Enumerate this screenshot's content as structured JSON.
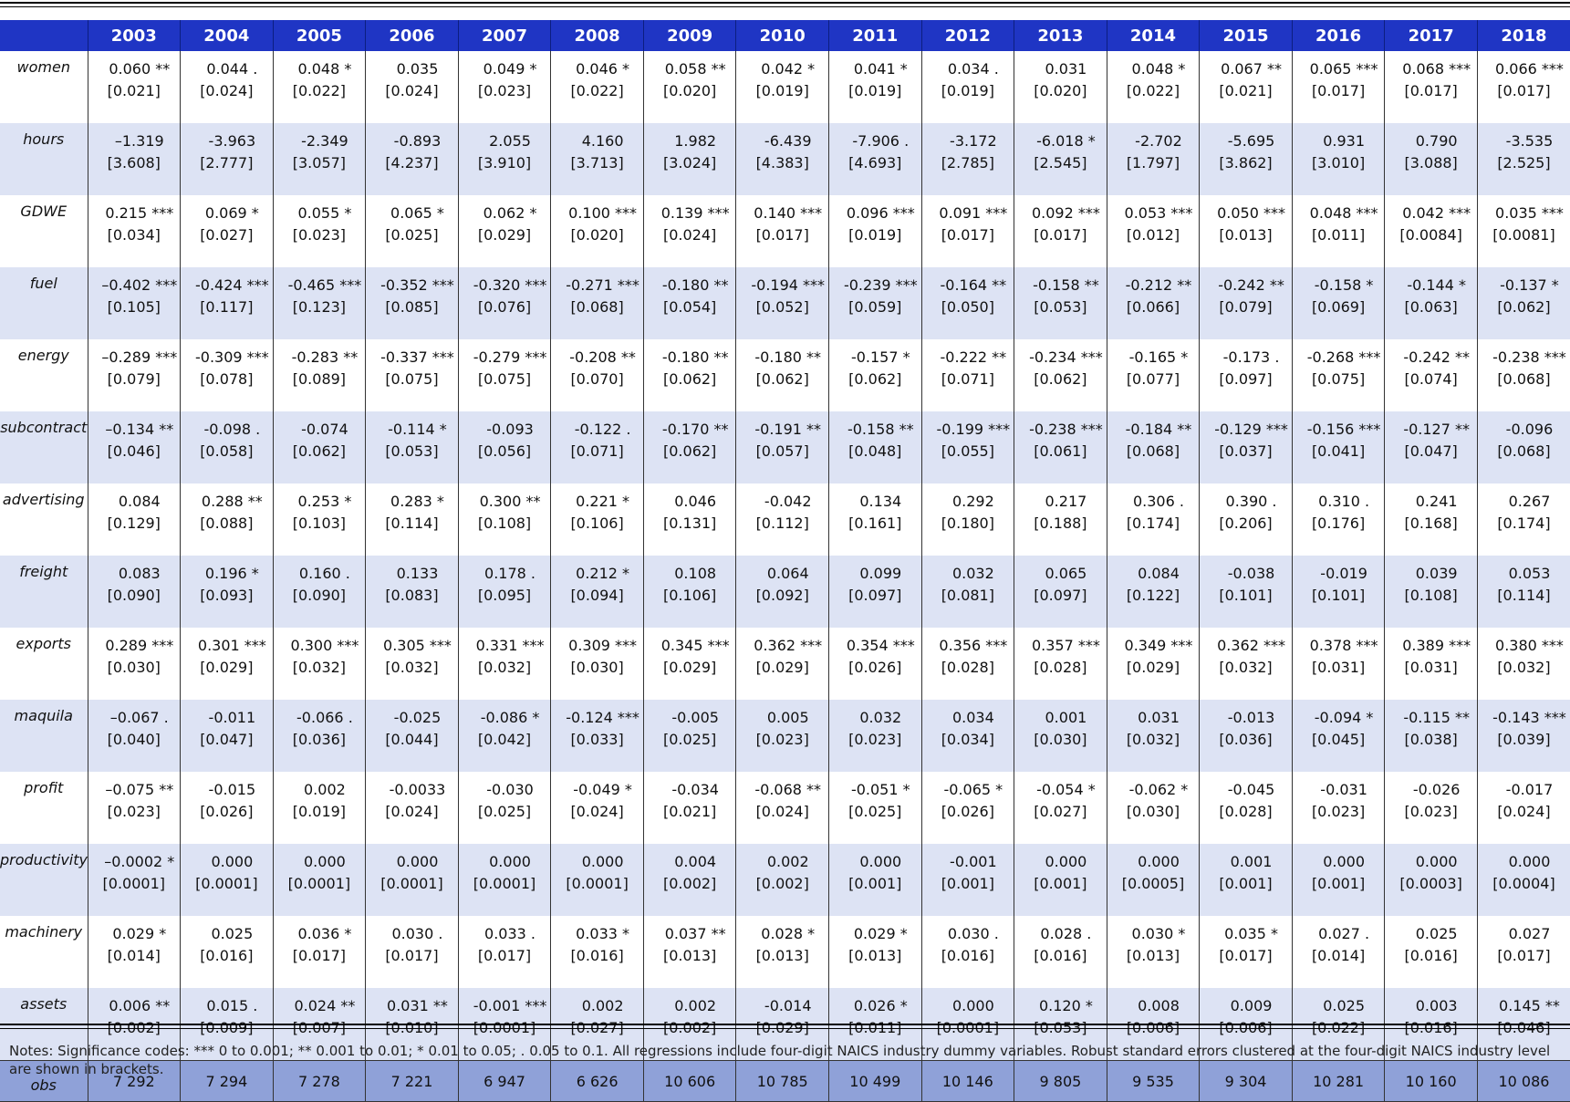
{
  "years": [
    "2003",
    "2004",
    "2005",
    "2006",
    "2007",
    "2008",
    "2009",
    "2010",
    "2011",
    "2012",
    "2013",
    "2014",
    "2015",
    "2016",
    "2017",
    "2018"
  ],
  "rows": [
    {
      "var": "women",
      "cells": [
        {
          "c": "0.060 **",
          "se": "[0.021]"
        },
        {
          "c": "0.044 .",
          "se": "[0.024]"
        },
        {
          "c": "0.048 *",
          "se": "[0.022]"
        },
        {
          "c": "0.035",
          "se": "[0.024]"
        },
        {
          "c": "0.049 *",
          "se": "[0.023]"
        },
        {
          "c": "0.046 *",
          "se": "[0.022]"
        },
        {
          "c": "0.058 **",
          "se": "[0.020]"
        },
        {
          "c": "0.042 *",
          "se": "[0.019]"
        },
        {
          "c": "0.041 *",
          "se": "[0.019]"
        },
        {
          "c": "0.034 .",
          "se": "[0.019]"
        },
        {
          "c": "0.031",
          "se": "[0.020]"
        },
        {
          "c": "0.048 *",
          "se": "[0.022]"
        },
        {
          "c": "0.067 **",
          "se": "[0.021]"
        },
        {
          "c": "0.065 ***",
          "se": "[0.017]"
        },
        {
          "c": "0.068 ***",
          "se": "[0.017]"
        },
        {
          "c": "0.066 ***",
          "se": "[0.017]"
        }
      ]
    },
    {
      "var": "hours",
      "cells": [
        {
          "c": "–1.319",
          "se": "[3.608]"
        },
        {
          "c": "-3.963",
          "se": "[2.777]"
        },
        {
          "c": "-2.349",
          "se": "[3.057]"
        },
        {
          "c": "-0.893",
          "se": "[4.237]"
        },
        {
          "c": "2.055",
          "se": "[3.910]"
        },
        {
          "c": "4.160",
          "se": "[3.713]"
        },
        {
          "c": "1.982",
          "se": "[3.024]"
        },
        {
          "c": "-6.439",
          "se": "[4.383]"
        },
        {
          "c": "-7.906 .",
          "se": "[4.693]"
        },
        {
          "c": "-3.172",
          "se": "[2.785]"
        },
        {
          "c": "-6.018 *",
          "se": "[2.545]"
        },
        {
          "c": "-2.702",
          "se": "[1.797]"
        },
        {
          "c": "-5.695",
          "se": "[3.862]"
        },
        {
          "c": "0.931",
          "se": "[3.010]"
        },
        {
          "c": "0.790",
          "se": "[3.088]"
        },
        {
          "c": "-3.535",
          "se": "[2.525]"
        }
      ]
    },
    {
      "var": "GDWE",
      "cells": [
        {
          "c": "0.215 ***",
          "se": "[0.034]"
        },
        {
          "c": "0.069 *",
          "se": "[0.027]"
        },
        {
          "c": "0.055 *",
          "se": "[0.023]"
        },
        {
          "c": "0.065 *",
          "se": "[0.025]"
        },
        {
          "c": "0.062 *",
          "se": "[0.029]"
        },
        {
          "c": "0.100 ***",
          "se": "[0.020]"
        },
        {
          "c": "0.139 ***",
          "se": "[0.024]"
        },
        {
          "c": "0.140 ***",
          "se": "[0.017]"
        },
        {
          "c": "0.096 ***",
          "se": "[0.019]"
        },
        {
          "c": "0.091 ***",
          "se": "[0.017]"
        },
        {
          "c": "0.092 ***",
          "se": "[0.017]"
        },
        {
          "c": "0.053 ***",
          "se": "[0.012]"
        },
        {
          "c": "0.050 ***",
          "se": "[0.013]"
        },
        {
          "c": "0.048 ***",
          "se": "[0.011]"
        },
        {
          "c": "0.042 ***",
          "se": "[0.0084]"
        },
        {
          "c": "0.035 ***",
          "se": "[0.0081]"
        }
      ]
    },
    {
      "var": "fuel",
      "cells": [
        {
          "c": "–0.402 ***",
          "se": "[0.105]"
        },
        {
          "c": "-0.424 ***",
          "se": "[0.117]"
        },
        {
          "c": "-0.465 ***",
          "se": "[0.123]"
        },
        {
          "c": "-0.352 ***",
          "se": "[0.085]"
        },
        {
          "c": "-0.320 ***",
          "se": "[0.076]"
        },
        {
          "c": "-0.271 ***",
          "se": "[0.068]"
        },
        {
          "c": "-0.180 **",
          "se": "[0.054]"
        },
        {
          "c": "-0.194 ***",
          "se": "[0.052]"
        },
        {
          "c": "-0.239 ***",
          "se": "[0.059]"
        },
        {
          "c": "-0.164 **",
          "se": "[0.050]"
        },
        {
          "c": "-0.158 **",
          "se": "[0.053]"
        },
        {
          "c": "-0.212 **",
          "se": "[0.066]"
        },
        {
          "c": "-0.242 **",
          "se": "[0.079]"
        },
        {
          "c": "-0.158 *",
          "se": "[0.069]"
        },
        {
          "c": "-0.144 *",
          "se": "[0.063]"
        },
        {
          "c": "-0.137 *",
          "se": "[0.062]"
        }
      ]
    },
    {
      "var": "energy",
      "cells": [
        {
          "c": "–0.289 ***",
          "se": "[0.079]"
        },
        {
          "c": "-0.309 ***",
          "se": "[0.078]"
        },
        {
          "c": "-0.283 **",
          "se": "[0.089]"
        },
        {
          "c": "-0.337 ***",
          "se": "[0.075]"
        },
        {
          "c": "-0.279 ***",
          "se": "[0.075]"
        },
        {
          "c": "-0.208 **",
          "se": "[0.070]"
        },
        {
          "c": "-0.180 **",
          "se": "[0.062]"
        },
        {
          "c": "-0.180 **",
          "se": "[0.062]"
        },
        {
          "c": "-0.157 *",
          "se": "[0.062]"
        },
        {
          "c": "-0.222 **",
          "se": "[0.071]"
        },
        {
          "c": "-0.234 ***",
          "se": "[0.062]"
        },
        {
          "c": "-0.165 *",
          "se": "[0.077]"
        },
        {
          "c": "-0.173 .",
          "se": "[0.097]"
        },
        {
          "c": "-0.268 ***",
          "se": "[0.075]"
        },
        {
          "c": "-0.242 **",
          "se": "[0.074]"
        },
        {
          "c": "-0.238 ***",
          "se": "[0.068]"
        }
      ]
    },
    {
      "var": "subcontract",
      "cells": [
        {
          "c": "–0.134 **",
          "se": "[0.046]"
        },
        {
          "c": "-0.098 .",
          "se": "[0.058]"
        },
        {
          "c": "-0.074",
          "se": "[0.062]"
        },
        {
          "c": "-0.114 *",
          "se": "[0.053]"
        },
        {
          "c": "-0.093",
          "se": "[0.056]"
        },
        {
          "c": "-0.122 .",
          "se": "[0.071]"
        },
        {
          "c": "-0.170 **",
          "se": "[0.062]"
        },
        {
          "c": "-0.191 **",
          "se": "[0.057]"
        },
        {
          "c": "-0.158 **",
          "se": "[0.048]"
        },
        {
          "c": "-0.199 ***",
          "se": "[0.055]"
        },
        {
          "c": "-0.238 ***",
          "se": "[0.061]"
        },
        {
          "c": "-0.184 **",
          "se": "[0.068]"
        },
        {
          "c": "-0.129 ***",
          "se": "[0.037]"
        },
        {
          "c": "-0.156 ***",
          "se": "[0.041]"
        },
        {
          "c": "-0.127 **",
          "se": "[0.047]"
        },
        {
          "c": "-0.096",
          "se": "[0.068]"
        }
      ]
    },
    {
      "var": "advertising",
      "cells": [
        {
          "c": "0.084",
          "se": "[0.129]"
        },
        {
          "c": "0.288 **",
          "se": "[0.088]"
        },
        {
          "c": "0.253 *",
          "se": "[0.103]"
        },
        {
          "c": "0.283 *",
          "se": "[0.114]"
        },
        {
          "c": "0.300 **",
          "se": "[0.108]"
        },
        {
          "c": "0.221 *",
          "se": "[0.106]"
        },
        {
          "c": "0.046",
          "se": "[0.131]"
        },
        {
          "c": "-0.042",
          "se": "[0.112]"
        },
        {
          "c": "0.134",
          "se": "[0.161]"
        },
        {
          "c": "0.292",
          "se": "[0.180]"
        },
        {
          "c": "0.217",
          "se": "[0.188]"
        },
        {
          "c": "0.306 .",
          "se": "[0.174]"
        },
        {
          "c": "0.390 .",
          "se": "[0.206]"
        },
        {
          "c": "0.310 .",
          "se": "[0.176]"
        },
        {
          "c": "0.241",
          "se": "[0.168]"
        },
        {
          "c": "0.267",
          "se": "[0.174]"
        }
      ]
    },
    {
      "var": "freight",
      "cells": [
        {
          "c": "0.083",
          "se": "[0.090]"
        },
        {
          "c": "0.196 *",
          "se": "[0.093]"
        },
        {
          "c": "0.160 .",
          "se": "[0.090]"
        },
        {
          "c": "0.133",
          "se": "[0.083]"
        },
        {
          "c": "0.178 .",
          "se": "[0.095]"
        },
        {
          "c": "0.212 *",
          "se": "[0.094]"
        },
        {
          "c": "0.108",
          "se": "[0.106]"
        },
        {
          "c": "0.064",
          "se": "[0.092]"
        },
        {
          "c": "0.099",
          "se": "[0.097]"
        },
        {
          "c": "0.032",
          "se": "[0.081]"
        },
        {
          "c": "0.065",
          "se": "[0.097]"
        },
        {
          "c": "0.084",
          "se": "[0.122]"
        },
        {
          "c": "-0.038",
          "se": "[0.101]"
        },
        {
          "c": "-0.019",
          "se": "[0.101]"
        },
        {
          "c": "0.039",
          "se": "[0.108]"
        },
        {
          "c": "0.053",
          "se": "[0.114]"
        }
      ]
    },
    {
      "var": "exports",
      "cells": [
        {
          "c": "0.289 ***",
          "se": "[0.030]"
        },
        {
          "c": "0.301 ***",
          "se": "[0.029]"
        },
        {
          "c": "0.300 ***",
          "se": "[0.032]"
        },
        {
          "c": "0.305 ***",
          "se": "[0.032]"
        },
        {
          "c": "0.331 ***",
          "se": "[0.032]"
        },
        {
          "c": "0.309 ***",
          "se": "[0.030]"
        },
        {
          "c": "0.345 ***",
          "se": "[0.029]"
        },
        {
          "c": "0.362 ***",
          "se": "[0.029]"
        },
        {
          "c": "0.354 ***",
          "se": "[0.026]"
        },
        {
          "c": "0.356 ***",
          "se": "[0.028]"
        },
        {
          "c": "0.357 ***",
          "se": "[0.028]"
        },
        {
          "c": "0.349 ***",
          "se": "[0.029]"
        },
        {
          "c": "0.362 ***",
          "se": "[0.032]"
        },
        {
          "c": "0.378 ***",
          "se": "[0.031]"
        },
        {
          "c": "0.389 ***",
          "se": "[0.031]"
        },
        {
          "c": "0.380 ***",
          "se": "[0.032]"
        }
      ]
    },
    {
      "var": "maquila",
      "cells": [
        {
          "c": "–0.067 .",
          "se": "[0.040]"
        },
        {
          "c": "-0.011",
          "se": "[0.047]"
        },
        {
          "c": "-0.066 .",
          "se": "[0.036]"
        },
        {
          "c": "-0.025",
          "se": "[0.044]"
        },
        {
          "c": "-0.086 *",
          "se": "[0.042]"
        },
        {
          "c": "-0.124 ***",
          "se": "[0.033]"
        },
        {
          "c": "-0.005",
          "se": "[0.025]"
        },
        {
          "c": "0.005",
          "se": "[0.023]"
        },
        {
          "c": "0.032",
          "se": "[0.023]"
        },
        {
          "c": "0.034",
          "se": "[0.034]"
        },
        {
          "c": "0.001",
          "se": "[0.030]"
        },
        {
          "c": "0.031",
          "se": "[0.032]"
        },
        {
          "c": "-0.013",
          "se": "[0.036]"
        },
        {
          "c": "-0.094 *",
          "se": "[0.045]"
        },
        {
          "c": "-0.115 **",
          "se": "[0.038]"
        },
        {
          "c": "-0.143 ***",
          "se": "[0.039]"
        }
      ]
    },
    {
      "var": "profit",
      "cells": [
        {
          "c": "–0.075 **",
          "se": "[0.023]"
        },
        {
          "c": "-0.015",
          "se": "[0.026]"
        },
        {
          "c": "0.002",
          "se": "[0.019]"
        },
        {
          "c": "-0.0033",
          "se": "[0.024]"
        },
        {
          "c": "-0.030",
          "se": "[0.025]"
        },
        {
          "c": "-0.049 *",
          "se": "[0.024]"
        },
        {
          "c": "-0.034",
          "se": "[0.021]"
        },
        {
          "c": "-0.068 **",
          "se": "[0.024]"
        },
        {
          "c": "-0.051 *",
          "se": "[0.025]"
        },
        {
          "c": "-0.065 *",
          "se": "[0.026]"
        },
        {
          "c": "-0.054 *",
          "se": "[0.027]"
        },
        {
          "c": "-0.062 *",
          "se": "[0.030]"
        },
        {
          "c": "-0.045",
          "se": "[0.028]"
        },
        {
          "c": "-0.031",
          "se": "[0.023]"
        },
        {
          "c": "-0.026",
          "se": "[0.023]"
        },
        {
          "c": "-0.017",
          "se": "[0.024]"
        }
      ]
    },
    {
      "var": "productivity",
      "cells": [
        {
          "c": "–0.0002 *",
          "se": "[0.0001]"
        },
        {
          "c": "0.000",
          "se": "[0.0001]"
        },
        {
          "c": "0.000",
          "se": "[0.0001]"
        },
        {
          "c": "0.000",
          "se": "[0.0001]"
        },
        {
          "c": "0.000",
          "se": "[0.0001]"
        },
        {
          "c": "0.000",
          "se": "[0.0001]"
        },
        {
          "c": "0.004",
          "se": "[0.002]"
        },
        {
          "c": "0.002",
          "se": "[0.002]"
        },
        {
          "c": "0.000",
          "se": "[0.001]"
        },
        {
          "c": "-0.001",
          "se": "[0.001]"
        },
        {
          "c": "0.000",
          "se": "[0.001]"
        },
        {
          "c": "0.000",
          "se": "[0.0005]"
        },
        {
          "c": "0.001",
          "se": "[0.001]"
        },
        {
          "c": "0.000",
          "se": "[0.001]"
        },
        {
          "c": "0.000",
          "se": "[0.0003]"
        },
        {
          "c": "0.000",
          "se": "[0.0004]"
        }
      ]
    },
    {
      "var": "machinery",
      "cells": [
        {
          "c": "0.029 *",
          "se": "[0.014]"
        },
        {
          "c": "0.025",
          "se": "[0.016]"
        },
        {
          "c": "0.036 *",
          "se": "[0.017]"
        },
        {
          "c": "0.030 .",
          "se": "[0.017]"
        },
        {
          "c": "0.033 .",
          "se": "[0.017]"
        },
        {
          "c": "0.033 *",
          "se": "[0.016]"
        },
        {
          "c": "0.037 **",
          "se": "[0.013]"
        },
        {
          "c": "0.028 *",
          "se": "[0.013]"
        },
        {
          "c": "0.029 *",
          "se": "[0.013]"
        },
        {
          "c": "0.030 .",
          "se": "[0.016]"
        },
        {
          "c": "0.028 .",
          "se": "[0.016]"
        },
        {
          "c": "0.030 *",
          "se": "[0.013]"
        },
        {
          "c": "0.035 *",
          "se": "[0.017]"
        },
        {
          "c": "0.027 .",
          "se": "[0.014]"
        },
        {
          "c": "0.025",
          "se": "[0.016]"
        },
        {
          "c": "0.027",
          "se": "[0.017]"
        }
      ]
    },
    {
      "var": "assets",
      "cells": [
        {
          "c": "0.006 **",
          "se": "[0.002]"
        },
        {
          "c": "0.015 .",
          "se": "[0.009]"
        },
        {
          "c": "0.024 **",
          "se": "[0.007]"
        },
        {
          "c": "0.031 **",
          "se": "[0.010]"
        },
        {
          "c": "-0.001 ***",
          "se": "[0.0001]"
        },
        {
          "c": "0.002",
          "se": "[0.027]"
        },
        {
          "c": "0.002",
          "se": "[0.002]"
        },
        {
          "c": "-0.014",
          "se": "[0.029]"
        },
        {
          "c": "0.026 *",
          "se": "[0.011]"
        },
        {
          "c": "0.000",
          "se": "[0.0001]"
        },
        {
          "c": "0.120 *",
          "se": "[0.053]"
        },
        {
          "c": "0.008",
          "se": "[0.006]"
        },
        {
          "c": "0.009",
          "se": "[0.006]"
        },
        {
          "c": "0.025",
          "se": "[0.022]"
        },
        {
          "c": "0.003",
          "se": "[0.016]"
        },
        {
          "c": "0.145 **",
          "se": "[0.046]"
        }
      ]
    }
  ],
  "obs": {
    "label": "obs",
    "values": [
      "7 292",
      "7 294",
      "7 278",
      "7 221",
      "6 947",
      "6 626",
      "10 606",
      "10 785",
      "10 499",
      "10 146",
      "9 805",
      "9 535",
      "9 304",
      "10 281",
      "10 160",
      "10 086"
    ]
  },
  "notes": "Notes: Significance codes: *** 0 to 0.001; ** 0.001 to 0.01; * 0.01 to 0.05; . 0.05 to 0.1. All regressions include four-digit NAICS industry dummy variables. Robust standard errors clustered at the four-digit NAICS industry level are shown in brackets."
}
